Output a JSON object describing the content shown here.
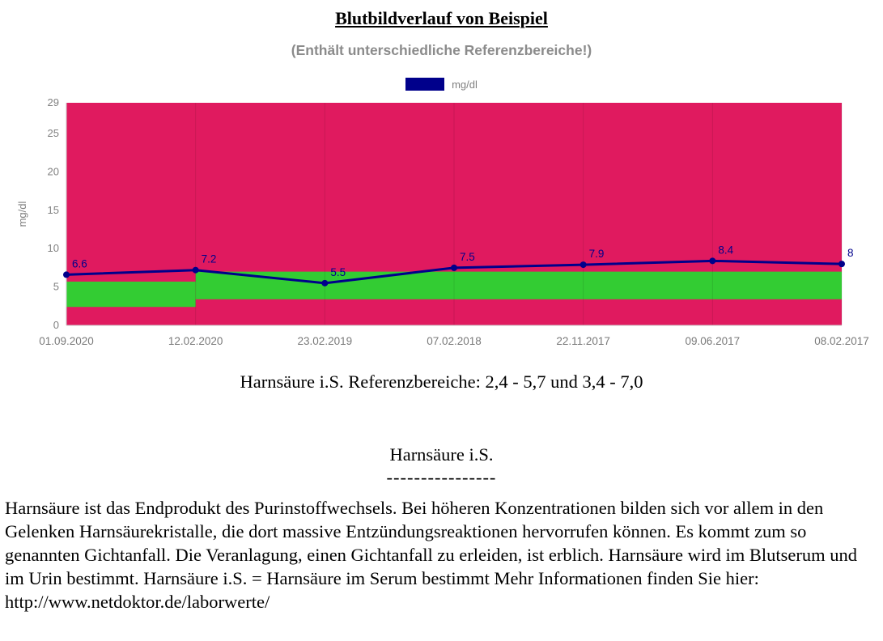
{
  "page": {
    "title": "Blutbildverlauf von Beispiel",
    "subtitle": "(Enthält unterschiedliche Referenzbereiche!)"
  },
  "chart_data": {
    "type": "line",
    "title": "Blutbildverlauf von Beispiel",
    "ylabel": "mg/dl",
    "categories": [
      "01.09.2020",
      "12.02.2020",
      "23.02.2019",
      "07.02.2018",
      "22.11.2017",
      "09.06.2017",
      "08.02.2017"
    ],
    "series": [
      {
        "name": "mg/dl",
        "values": [
          6.6,
          7.2,
          5.5,
          7.5,
          7.9,
          8.4,
          8
        ],
        "labels": [
          "6.6",
          "7.2",
          "5.5",
          "7.5",
          "7.9",
          "8.4",
          "8"
        ],
        "color": "#00008B"
      }
    ],
    "ylim": [
      0,
      29
    ],
    "yticks": [
      0,
      5,
      10,
      15,
      20,
      25,
      29
    ],
    "grid": "vertical-faint",
    "legend_position": "top-center",
    "legend": [
      {
        "label": "mg/dl",
        "color": "#00008B"
      }
    ],
    "plot_background": "#E01A5F",
    "reference_bands": [
      {
        "x_from": "01.09.2020",
        "x_to": "12.02.2020",
        "low": 2.4,
        "high": 5.7,
        "color": "#33CC33"
      },
      {
        "x_from": "12.02.2020",
        "x_to": "08.02.2017",
        "low": 3.4,
        "high": 7.0,
        "color": "#33CC33"
      }
    ]
  },
  "caption": "Harnsäure i.S. Referenzbereiche: 2,4 - 5,7 und 3,4 - 7,0",
  "info": {
    "heading": "Harnsäure i.S.",
    "divider": "----------------",
    "body": "Harnsäure ist das Endprodukt des Purinstoffwechsels. Bei höheren Konzentrationen bilden sich vor allem in den Gelenken Harnsäurekristalle, die dort massive Entzündungsreaktionen hervorrufen können. Es kommt zum so genannten Gichtanfall. Die Veranlagung, einen Gichtanfall zu erleiden, ist erblich. Harnsäure wird im Blutserum und im Urin bestimmt. Harnsäure i.S. = Harnsäure im Serum bestimmt Mehr Informationen finden Sie hier: http://www.netdoktor.de/laborwerte/"
  }
}
